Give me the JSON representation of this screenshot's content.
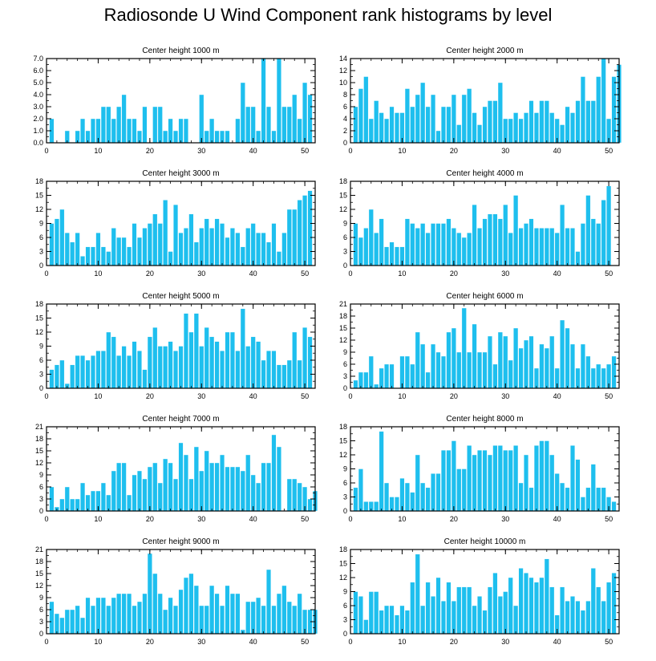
{
  "title": "Radiosonde U Wind Component rank histograms by level",
  "colors": {
    "bar": "#1ebfee",
    "axis": "#000000",
    "bar_edge": "#ffffff"
  },
  "chart_data": [
    {
      "type": "bar",
      "title": "Center height 1000 m",
      "xlim": [
        0,
        52
      ],
      "ylim": [
        0,
        7.0
      ],
      "yticks": [
        "0.0",
        "1.0",
        "2.0",
        "3.0",
        "4.0",
        "5.0",
        "6.0",
        "7.0"
      ],
      "yticks_values": [
        0,
        1,
        2,
        3,
        4,
        5,
        6,
        7
      ],
      "xticks": [
        "0",
        "10",
        "20",
        "30",
        "40",
        "50"
      ],
      "xticks_values": [
        0,
        10,
        20,
        30,
        40,
        50
      ],
      "values": [
        2,
        0,
        0,
        1,
        0,
        1,
        2,
        1,
        2,
        2,
        3,
        3,
        2,
        3,
        4,
        2,
        2,
        1,
        3,
        0,
        3,
        3,
        1,
        2,
        1,
        2,
        2,
        0,
        0,
        4,
        1,
        2,
        1,
        1,
        1,
        0,
        2,
        5,
        3,
        3,
        1,
        7,
        3,
        1,
        7,
        3,
        3,
        4,
        2,
        5,
        4
      ]
    },
    {
      "type": "bar",
      "title": "Center height 2000 m",
      "xlim": [
        0,
        52
      ],
      "ylim": [
        0,
        14
      ],
      "yticks": [
        "0",
        "2",
        "4",
        "6",
        "8",
        "10",
        "12",
        "14"
      ],
      "yticks_values": [
        0,
        2,
        4,
        6,
        8,
        10,
        12,
        14
      ],
      "xticks": [
        "0",
        "10",
        "20",
        "30",
        "40",
        "50"
      ],
      "xticks_values": [
        0,
        10,
        20,
        30,
        40,
        50
      ],
      "values": [
        6,
        9,
        11,
        4,
        7,
        5,
        4,
        6,
        5,
        5,
        9,
        6,
        8,
        10,
        6,
        8,
        2,
        6,
        6,
        8,
        3,
        8,
        9,
        5,
        3,
        6,
        7,
        7,
        10,
        4,
        4,
        5,
        4,
        5,
        7,
        5,
        7,
        7,
        5,
        4,
        3,
        6,
        5,
        7,
        11,
        7,
        7,
        11,
        14,
        4,
        11,
        13
      ]
    },
    {
      "type": "bar",
      "title": "Center height 3000 m",
      "xlim": [
        0,
        52
      ],
      "ylim": [
        0,
        18
      ],
      "yticks": [
        "0",
        "3",
        "6",
        "9",
        "12",
        "15",
        "18"
      ],
      "yticks_values": [
        0,
        3,
        6,
        9,
        12,
        15,
        18
      ],
      "xticks": [
        "0",
        "10",
        "20",
        "30",
        "40",
        "50"
      ],
      "xticks_values": [
        0,
        10,
        20,
        30,
        40,
        50
      ],
      "values": [
        9,
        10,
        12,
        7,
        5,
        7,
        2,
        4,
        4,
        7,
        4,
        3,
        8,
        6,
        6,
        4,
        9,
        6,
        8,
        9,
        11,
        9,
        14,
        3,
        13,
        7,
        8,
        11,
        5,
        8,
        10,
        8,
        10,
        9,
        6,
        8,
        7,
        4,
        8,
        9,
        7,
        7,
        5,
        9,
        3,
        7,
        12,
        12,
        14,
        15,
        16
      ]
    },
    {
      "type": "bar",
      "title": "Center height 4000 m",
      "xlim": [
        0,
        52
      ],
      "ylim": [
        0,
        18
      ],
      "yticks": [
        "0",
        "3",
        "6",
        "9",
        "12",
        "15",
        "18"
      ],
      "yticks_values": [
        0,
        3,
        6,
        9,
        12,
        15,
        18
      ],
      "xticks": [
        "0",
        "10",
        "20",
        "30",
        "40",
        "50"
      ],
      "xticks_values": [
        0,
        10,
        20,
        30,
        40,
        50
      ],
      "values": [
        9,
        6,
        8,
        12,
        7,
        10,
        4,
        5,
        4,
        4,
        10,
        9,
        8,
        9,
        7,
        9,
        9,
        9,
        10,
        8,
        7,
        6,
        7,
        13,
        8,
        10,
        11,
        11,
        10,
        13,
        7,
        15,
        8,
        9,
        10,
        8,
        8,
        8,
        8,
        7,
        13,
        8,
        8,
        3,
        9,
        15,
        10,
        9,
        14,
        17
      ]
    },
    {
      "type": "bar",
      "title": "Center height 5000 m",
      "xlim": [
        0,
        52
      ],
      "ylim": [
        0,
        18
      ],
      "yticks": [
        "0",
        "3",
        "6",
        "9",
        "12",
        "15",
        "18"
      ],
      "yticks_values": [
        0,
        3,
        6,
        9,
        12,
        15,
        18
      ],
      "xticks": [
        "0",
        "10",
        "20",
        "30",
        "40",
        "50"
      ],
      "xticks_values": [
        0,
        10,
        20,
        30,
        40,
        50
      ],
      "values": [
        4,
        5,
        6,
        1,
        5,
        7,
        7,
        6,
        7,
        8,
        8,
        12,
        11,
        7,
        9,
        7,
        10,
        8,
        4,
        11,
        13,
        9,
        9,
        10,
        8,
        9,
        16,
        12,
        16,
        9,
        13,
        11,
        10,
        8,
        12,
        12,
        8,
        17,
        9,
        11,
        10,
        6,
        8,
        8,
        5,
        5,
        6,
        12,
        6,
        13,
        11
      ]
    },
    {
      "type": "bar",
      "title": "Center height 6000 m",
      "xlim": [
        0,
        52
      ],
      "ylim": [
        0,
        21
      ],
      "yticks": [
        "0",
        "3",
        "6",
        "9",
        "12",
        "15",
        "18",
        "21"
      ],
      "yticks_values": [
        0,
        3,
        6,
        9,
        12,
        15,
        18,
        21
      ],
      "xticks": [
        "0",
        "10",
        "20",
        "30",
        "40",
        "50"
      ],
      "xticks_values": [
        0,
        10,
        20,
        30,
        40,
        50
      ],
      "values": [
        2,
        4,
        4,
        8,
        1,
        5,
        6,
        6,
        0,
        8,
        8,
        6,
        14,
        11,
        4,
        11,
        9,
        8,
        14,
        15,
        9,
        20,
        9,
        16,
        9,
        9,
        13,
        6,
        14,
        13,
        7,
        15,
        10,
        12,
        13,
        5,
        11,
        10,
        13,
        5,
        17,
        15,
        11,
        5,
        11,
        8,
        5,
        6,
        5,
        6,
        8
      ]
    },
    {
      "type": "bar",
      "title": "Center height 7000 m",
      "xlim": [
        0,
        52
      ],
      "ylim": [
        0,
        21
      ],
      "yticks": [
        "0",
        "3",
        "6",
        "9",
        "12",
        "15",
        "18",
        "21"
      ],
      "yticks_values": [
        0,
        3,
        6,
        9,
        12,
        15,
        18,
        21
      ],
      "xticks": [
        "0",
        "10",
        "20",
        "30",
        "40",
        "50"
      ],
      "xticks_values": [
        0,
        10,
        20,
        30,
        40,
        50
      ],
      "values": [
        6,
        1,
        3,
        6,
        3,
        3,
        7,
        4,
        5,
        5,
        7,
        4,
        10,
        12,
        12,
        4,
        9,
        10,
        8,
        11,
        12,
        7,
        13,
        12,
        8,
        17,
        14,
        8,
        16,
        10,
        15,
        12,
        12,
        14,
        11,
        11,
        11,
        10,
        14,
        9,
        7,
        12,
        12,
        19,
        16,
        0,
        8,
        8,
        7,
        6,
        3,
        5
      ]
    },
    {
      "type": "bar",
      "title": "Center height 8000 m",
      "xlim": [
        0,
        52
      ],
      "ylim": [
        0,
        18
      ],
      "yticks": [
        "0",
        "3",
        "6",
        "9",
        "12",
        "15",
        "18"
      ],
      "yticks_values": [
        0,
        3,
        6,
        9,
        12,
        15,
        18
      ],
      "xticks": [
        "0",
        "10",
        "20",
        "30",
        "40",
        "50"
      ],
      "xticks_values": [
        0,
        10,
        20,
        30,
        40,
        50
      ],
      "values": [
        5,
        9,
        2,
        2,
        2,
        17,
        6,
        3,
        3,
        7,
        6,
        4,
        12,
        6,
        5,
        8,
        8,
        13,
        13,
        15,
        9,
        9,
        14,
        12,
        13,
        13,
        12,
        14,
        14,
        13,
        13,
        14,
        6,
        12,
        5,
        14,
        15,
        15,
        12,
        8,
        6,
        5,
        14,
        11,
        3,
        5,
        10,
        5,
        5,
        3,
        2
      ]
    },
    {
      "type": "bar",
      "title": "Center height 9000 m",
      "xlim": [
        0,
        52
      ],
      "ylim": [
        0,
        21
      ],
      "yticks": [
        "0",
        "3",
        "6",
        "9",
        "12",
        "15",
        "18",
        "21"
      ],
      "yticks_values": [
        0,
        3,
        6,
        9,
        12,
        15,
        18,
        21
      ],
      "xticks": [
        "0",
        "10",
        "20",
        "30",
        "40",
        "50"
      ],
      "xticks_values": [
        0,
        10,
        20,
        30,
        40,
        50
      ],
      "values": [
        8,
        5,
        4,
        6,
        6,
        7,
        4,
        9,
        7,
        9,
        9,
        7,
        9,
        10,
        10,
        10,
        7,
        8,
        10,
        20,
        15,
        10,
        6,
        9,
        7,
        11,
        14,
        15,
        12,
        7,
        7,
        12,
        10,
        7,
        12,
        10,
        10,
        1,
        8,
        8,
        9,
        7,
        16,
        7,
        10,
        12,
        8,
        7,
        10,
        6,
        6,
        6
      ]
    },
    {
      "type": "bar",
      "title": "Center height 10000 m",
      "xlim": [
        0,
        52
      ],
      "ylim": [
        0,
        18
      ],
      "yticks": [
        "0",
        "3",
        "6",
        "9",
        "12",
        "15",
        "18"
      ],
      "yticks_values": [
        0,
        3,
        6,
        9,
        12,
        15,
        18
      ],
      "xticks": [
        "0",
        "10",
        "20",
        "30",
        "40",
        "50"
      ],
      "xticks_values": [
        0,
        10,
        20,
        30,
        40,
        50
      ],
      "values": [
        9,
        8,
        3,
        9,
        9,
        5,
        6,
        6,
        4,
        6,
        5,
        11,
        17,
        6,
        11,
        8,
        12,
        7,
        11,
        7,
        10,
        10,
        10,
        6,
        8,
        5,
        10,
        13,
        8,
        9,
        12,
        6,
        14,
        13,
        12,
        11,
        12,
        16,
        10,
        4,
        10,
        7,
        8,
        7,
        5,
        7,
        14,
        10,
        7,
        11,
        13
      ]
    }
  ]
}
